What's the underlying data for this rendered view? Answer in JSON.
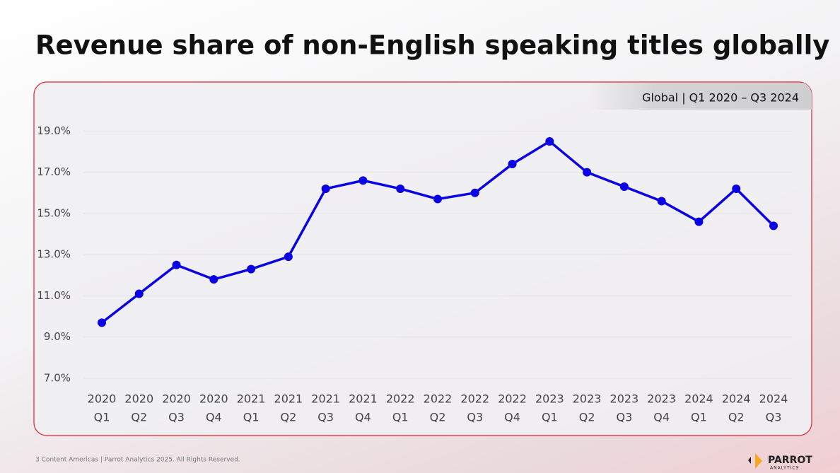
{
  "slide": {
    "title": "Revenue share of non-English speaking titles globally",
    "footer": "3  Content Americas  |  Parrot Analytics 2025. All Rights Reserved.",
    "logo": "PARROT",
    "logo_sub": "ANALYTICS"
  },
  "chart_data": {
    "type": "line",
    "subtitle": "Global  |  Q1 2020 – Q3 2024",
    "categories": [
      [
        "2020",
        "Q1"
      ],
      [
        "2020",
        "Q2"
      ],
      [
        "2020",
        "Q3"
      ],
      [
        "2020",
        "Q4"
      ],
      [
        "2021",
        "Q1"
      ],
      [
        "2021",
        "Q2"
      ],
      [
        "2021",
        "Q3"
      ],
      [
        "2021",
        "Q4"
      ],
      [
        "2022",
        "Q1"
      ],
      [
        "2022",
        "Q2"
      ],
      [
        "2022",
        "Q3"
      ],
      [
        "2022",
        "Q4"
      ],
      [
        "2023",
        "Q1"
      ],
      [
        "2023",
        "Q2"
      ],
      [
        "2023",
        "Q3"
      ],
      [
        "2023",
        "Q4"
      ],
      [
        "2024",
        "Q1"
      ],
      [
        "2024",
        "Q2"
      ],
      [
        "2024",
        "Q3"
      ]
    ],
    "values": [
      9.7,
      11.1,
      12.5,
      11.8,
      12.3,
      12.9,
      16.2,
      16.6,
      16.2,
      15.7,
      16.0,
      17.4,
      18.5,
      17.0,
      16.3,
      15.6,
      14.6,
      16.2,
      14.4
    ],
    "color": "#0a00e6",
    "ylim": [
      7,
      19.7
    ],
    "yticks": [
      {
        "value": 7,
        "label": "7.0%"
      },
      {
        "value": 9,
        "label": "9.0%"
      },
      {
        "value": 11,
        "label": "11.0%"
      },
      {
        "value": 13,
        "label": "13.0%"
      },
      {
        "value": 15,
        "label": "15.0%"
      },
      {
        "value": 17,
        "label": "17.0%"
      },
      {
        "value": 19,
        "label": "19.0%"
      }
    ],
    "grid": true
  }
}
